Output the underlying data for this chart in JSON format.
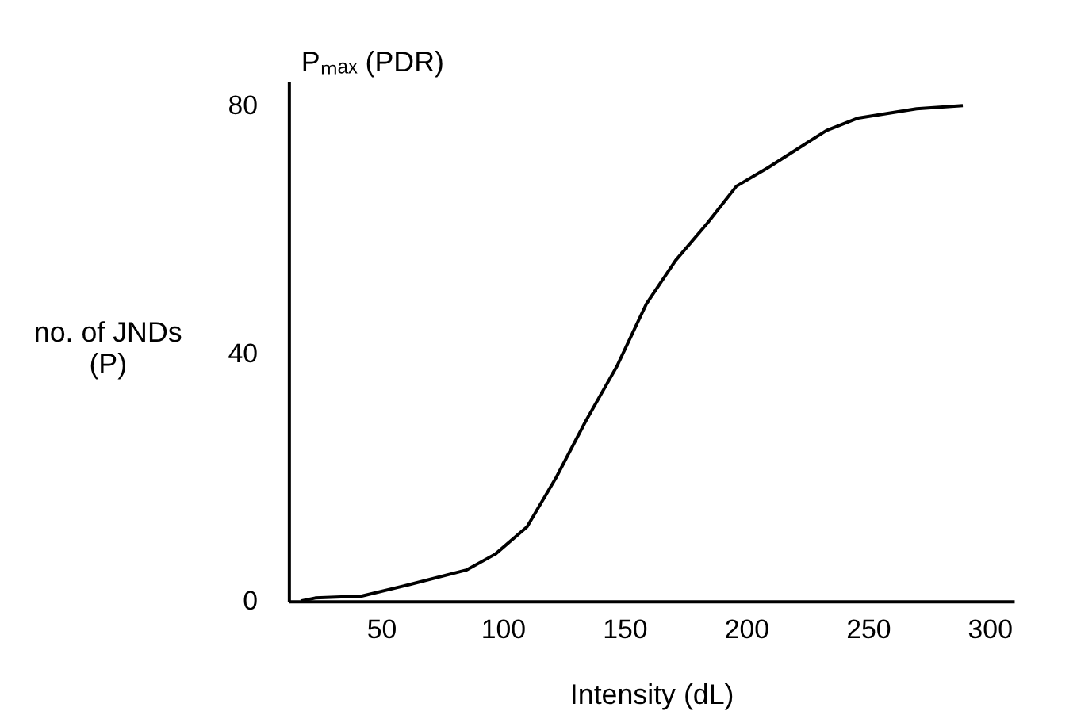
{
  "chart_data": {
    "type": "line",
    "xlabel": "Intensity (dL)",
    "ylabel": "no. of JNDs\n(P)",
    "annotations": [
      "Pₘₐₓ (PDR)"
    ],
    "x": [
      17,
      23,
      42,
      60,
      85,
      97,
      110,
      122,
      134,
      147,
      159,
      171,
      184,
      196,
      209,
      221,
      233,
      246,
      270,
      289
    ],
    "series": [
      {
        "color": "#000000",
        "values": [
          0,
          0.5,
          0.8,
          2.5,
          5,
          7.6,
          12,
          20,
          29,
          38,
          48,
          55,
          61,
          67,
          70,
          73,
          76,
          78,
          79.5,
          80
        ]
      }
    ],
    "xlim": [
      12,
      310
    ],
    "ylim": [
      0,
      84
    ],
    "xticks": [
      50,
      100,
      150,
      200,
      250,
      300
    ],
    "yticks": [
      0,
      40,
      80
    ],
    "grid": false,
    "marker": "none",
    "line_style": "solid"
  }
}
